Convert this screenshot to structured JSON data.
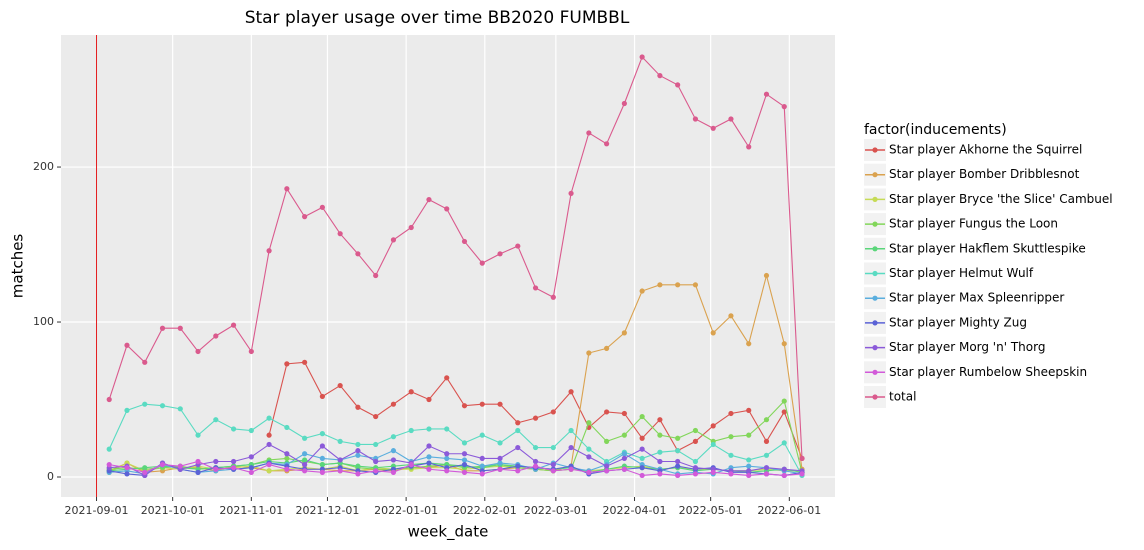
{
  "chart_data": {
    "type": "line",
    "title": "Star player usage over time BB2020 FUMBBL",
    "x_label": "week_date",
    "y_label": "matches",
    "legend_title": "factor(inducements)",
    "grid": true,
    "legend_position": "right",
    "x": [
      "2021-09-06",
      "2021-09-13",
      "2021-09-20",
      "2021-09-27",
      "2021-10-04",
      "2021-10-11",
      "2021-10-18",
      "2021-10-25",
      "2021-11-01",
      "2021-11-08",
      "2021-11-15",
      "2021-11-22",
      "2021-11-29",
      "2021-12-06",
      "2021-12-13",
      "2021-12-20",
      "2021-12-27",
      "2022-01-03",
      "2022-01-10",
      "2022-01-17",
      "2022-01-24",
      "2022-01-31",
      "2022-02-07",
      "2022-02-14",
      "2022-02-21",
      "2022-02-28",
      "2022-03-07",
      "2022-03-14",
      "2022-03-21",
      "2022-03-28",
      "2022-04-04",
      "2022-04-11",
      "2022-04-18",
      "2022-04-25",
      "2022-05-02",
      "2022-05-09",
      "2022-05-16",
      "2022-05-23",
      "2022-05-30",
      "2022-06-06"
    ],
    "xlim": [
      "2021-08-18",
      "2022-06-19"
    ],
    "xticks": [
      "2021-09-01",
      "2021-10-01",
      "2021-11-01",
      "2021-12-01",
      "2022-01-01",
      "2022-02-01",
      "2022-03-01",
      "2022-04-01",
      "2022-05-01",
      "2022-06-01"
    ],
    "ylim": [
      -12.9,
      285.2
    ],
    "yticks": [
      0,
      100,
      200
    ],
    "vline": {
      "x": "2021-09-01",
      "color": "#e31a1c"
    },
    "series": [
      {
        "name": "Star player Akhorne the Squirrel",
        "color": "#d9534f",
        "values": [
          null,
          null,
          null,
          null,
          null,
          null,
          null,
          null,
          null,
          27,
          73,
          74,
          52,
          59,
          45,
          39,
          47,
          55,
          50,
          64,
          46,
          47,
          47,
          35,
          38,
          42,
          55,
          32,
          42,
          41,
          25,
          37,
          17,
          23,
          33,
          41,
          43,
          23,
          42,
          12
        ]
      },
      {
        "name": "Star player Bomber Dribblesnot",
        "color": "#daa24f",
        "values": [
          4,
          9,
          3,
          4,
          6,
          6,
          4,
          7,
          6,
          4,
          4,
          5,
          5,
          4,
          4,
          5,
          4,
          6,
          6,
          8,
          4,
          4,
          5,
          6,
          5,
          4,
          7,
          80,
          83,
          93,
          120,
          124,
          124,
          124,
          93,
          104,
          86,
          130,
          86,
          5
        ]
      },
      {
        "name": "Star player Bryce 'the Slice' Cambuel",
        "color": "#c6db56",
        "values": [
          3,
          9,
          4,
          6,
          5,
          7,
          5,
          6,
          7,
          4,
          5,
          6,
          5,
          7,
          4,
          6,
          5,
          5,
          6,
          6,
          5,
          6,
          7,
          6,
          5,
          4,
          5,
          4,
          5,
          6,
          7,
          5,
          6,
          5,
          5,
          4,
          4,
          5,
          4,
          4
        ]
      },
      {
        "name": "Star player Fungus the Loon",
        "color": "#82d65a",
        "values": [
          5,
          6,
          5,
          6,
          7,
          5,
          6,
          7,
          8,
          11,
          12,
          10,
          8,
          9,
          6,
          5,
          5,
          6,
          7,
          8,
          6,
          7,
          8,
          6,
          5,
          4,
          5,
          35,
          23,
          27,
          39,
          27,
          25,
          30,
          23,
          26,
          27,
          37,
          49,
          3
        ]
      },
      {
        "name": "Star player Hakflem Skuttlespike",
        "color": "#5ad67a",
        "values": [
          4,
          5,
          6,
          7,
          6,
          5,
          6,
          7,
          8,
          10,
          9,
          11,
          8,
          9,
          7,
          6,
          7,
          8,
          9,
          8,
          7,
          6,
          8,
          7,
          6,
          5,
          6,
          3,
          5,
          7,
          6,
          5,
          6,
          4,
          5,
          4,
          3,
          4,
          5,
          3
        ]
      },
      {
        "name": "Star player Helmut Wulf",
        "color": "#5adbc2",
        "values": [
          18,
          43,
          47,
          46,
          44,
          27,
          37,
          31,
          30,
          38,
          32,
          25,
          28,
          23,
          21,
          21,
          26,
          30,
          31,
          31,
          22,
          27,
          22,
          30,
          19,
          19,
          30,
          18,
          10,
          16,
          12,
          16,
          17,
          10,
          21,
          14,
          11,
          14,
          22,
          1
        ]
      },
      {
        "name": "Star player Max Spleenripper",
        "color": "#5aaede",
        "values": [
          3,
          4,
          2,
          8,
          5,
          3,
          4,
          5,
          6,
          9,
          8,
          15,
          12,
          11,
          14,
          12,
          17,
          10,
          13,
          12,
          11,
          7,
          9,
          8,
          5,
          9,
          6,
          4,
          8,
          15,
          8,
          5,
          2,
          3,
          2,
          6,
          7,
          6,
          4,
          2
        ]
      },
      {
        "name": "Star player Mighty Zug",
        "color": "#5b63d6",
        "values": [
          4,
          2,
          1,
          9,
          5,
          3,
          6,
          5,
          6,
          9,
          7,
          5,
          5,
          6,
          4,
          3,
          5,
          7,
          9,
          6,
          8,
          4,
          5,
          7,
          6,
          5,
          7,
          2,
          4,
          5,
          6,
          4,
          7,
          5,
          6,
          3,
          3,
          2,
          1,
          3
        ]
      },
      {
        "name": "Star player Morg 'n' Thorg",
        "color": "#8b5ad9",
        "values": [
          6,
          7,
          1,
          9,
          5,
          8,
          10,
          10,
          13,
          21,
          15,
          8,
          20,
          11,
          17,
          10,
          11,
          9,
          20,
          15,
          15,
          12,
          12,
          19,
          10,
          8,
          19,
          13,
          7,
          12,
          18,
          10,
          10,
          6,
          5,
          4,
          4,
          6,
          5,
          4
        ]
      },
      {
        "name": "Star player Rumbelow Sheepskin",
        "color": "#d25ad9",
        "values": [
          8,
          6,
          3,
          8,
          7,
          10,
          5,
          6,
          3,
          8,
          5,
          4,
          3,
          4,
          2,
          4,
          3,
          8,
          5,
          4,
          3,
          2,
          5,
          4,
          7,
          4,
          5,
          3,
          4,
          5,
          1,
          2,
          1,
          2,
          3,
          2,
          1,
          2,
          1,
          2
        ]
      },
      {
        "name": "total",
        "color": "#da5a8d",
        "values": [
          50,
          85,
          74,
          96,
          96,
          81,
          91,
          98,
          81,
          146,
          186,
          168,
          174,
          157,
          144,
          130,
          153,
          161,
          179,
          173,
          152,
          138,
          144,
          149,
          122,
          116,
          183,
          222,
          215,
          241,
          271,
          259,
          253,
          231,
          225,
          231,
          213,
          247,
          239,
          12
        ]
      }
    ]
  }
}
